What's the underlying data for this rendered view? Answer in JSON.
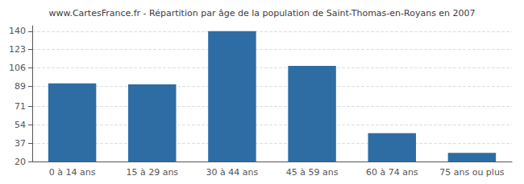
{
  "chart_data": {
    "type": "bar",
    "title": "www.CartesFrance.fr - Répartition par âge de la population de Saint-Thomas-en-Royans en 2007",
    "categories": [
      "0 à 14 ans",
      "15 à 29 ans",
      "30 à 44 ans",
      "45 à 59 ans",
      "60 à 74 ans",
      "75 ans ou plus"
    ],
    "values": [
      92,
      91,
      140,
      108,
      46,
      28
    ],
    "color": "#2e6da4",
    "ylim": [
      20,
      145
    ],
    "yticks": [
      20,
      37,
      54,
      71,
      89,
      106,
      123,
      140
    ],
    "grid": true
  }
}
